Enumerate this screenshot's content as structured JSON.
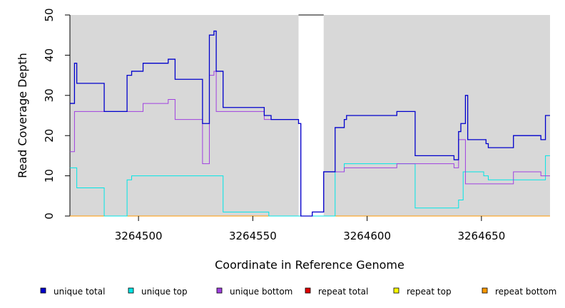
{
  "chart_data": {
    "type": "line",
    "step": true,
    "xlabel": "Coordinate in Reference Genome",
    "ylabel": "Read Coverage Depth",
    "xlim": [
      3264470,
      3264680
    ],
    "ylim": [
      0,
      50
    ],
    "x_ticks": [
      3264500,
      3264550,
      3264600,
      3264650
    ],
    "x_tick_labels": [
      "3264500",
      "3264550",
      "3264600",
      "3264650"
    ],
    "y_ticks": [
      0,
      10,
      20,
      30,
      40,
      50
    ],
    "y_tick_labels": [
      "0",
      "10",
      "20",
      "30",
      "40",
      "50"
    ],
    "background_color": "#d8d8d8",
    "background_gaps": [
      [
        3264570,
        3264581
      ]
    ],
    "series": [
      {
        "name": "unique total",
        "color": "#0000cc",
        "points": [
          [
            3264470,
            28
          ],
          [
            3264472,
            38
          ],
          [
            3264473,
            33
          ],
          [
            3264485,
            26
          ],
          [
            3264495,
            35
          ],
          [
            3264497,
            36
          ],
          [
            3264502,
            38
          ],
          [
            3264513,
            39
          ],
          [
            3264516,
            34
          ],
          [
            3264528,
            23
          ],
          [
            3264531,
            45
          ],
          [
            3264533,
            46
          ],
          [
            3264534,
            36
          ],
          [
            3264537,
            27
          ],
          [
            3264555,
            25
          ],
          [
            3264558,
            24
          ],
          [
            3264570,
            23
          ],
          [
            3264571,
            0
          ],
          [
            3264576,
            1
          ],
          [
            3264581,
            11
          ],
          [
            3264586,
            22
          ],
          [
            3264590,
            24
          ],
          [
            3264591,
            25
          ],
          [
            3264603,
            25
          ],
          [
            3264613,
            26
          ],
          [
            3264621,
            15
          ],
          [
            3264638,
            14
          ],
          [
            3264640,
            21
          ],
          [
            3264641,
            23
          ],
          [
            3264643,
            30
          ],
          [
            3264644,
            19
          ],
          [
            3264652,
            18
          ],
          [
            3264653,
            17
          ],
          [
            3264664,
            20
          ],
          [
            3264676,
            19
          ],
          [
            3264678,
            25
          ],
          [
            3264680,
            25
          ]
        ]
      },
      {
        "name": "unique top",
        "color": "#00e5e5",
        "points": [
          [
            3264470,
            12
          ],
          [
            3264473,
            7
          ],
          [
            3264485,
            0
          ],
          [
            3264495,
            9
          ],
          [
            3264497,
            10
          ],
          [
            3264537,
            1
          ],
          [
            3264557,
            0
          ],
          [
            3264586,
            11
          ],
          [
            3264590,
            13
          ],
          [
            3264621,
            2
          ],
          [
            3264640,
            4
          ],
          [
            3264642,
            11
          ],
          [
            3264651,
            10
          ],
          [
            3264653,
            9
          ],
          [
            3264664,
            9
          ],
          [
            3264678,
            15
          ],
          [
            3264680,
            15
          ]
        ]
      },
      {
        "name": "unique bottom",
        "color": "#a040e0",
        "points": [
          [
            3264470,
            16
          ],
          [
            3264472,
            26
          ],
          [
            3264502,
            28
          ],
          [
            3264513,
            29
          ],
          [
            3264516,
            24
          ],
          [
            3264528,
            13
          ],
          [
            3264531,
            35
          ],
          [
            3264533,
            36
          ],
          [
            3264534,
            26
          ],
          [
            3264555,
            24
          ],
          [
            3264558,
            24
          ],
          [
            3264570,
            23
          ],
          [
            3264571,
            0
          ],
          [
            3264576,
            1
          ],
          [
            3264581,
            11
          ],
          [
            3264590,
            12
          ],
          [
            3264613,
            13
          ],
          [
            3264638,
            12
          ],
          [
            3264640,
            19
          ],
          [
            3264643,
            8
          ],
          [
            3264664,
            11
          ],
          [
            3264676,
            10
          ],
          [
            3264680,
            10
          ]
        ]
      },
      {
        "name": "repeat total",
        "color": "#e00000",
        "points": [
          [
            3264470,
            0
          ],
          [
            3264680,
            0
          ]
        ]
      },
      {
        "name": "repeat top",
        "color": "#ffff00",
        "points": [
          [
            3264470,
            0
          ],
          [
            3264680,
            0
          ]
        ]
      },
      {
        "name": "repeat bottom",
        "color": "#ff9900",
        "points": [
          [
            3264470,
            0
          ],
          [
            3264680,
            0
          ]
        ]
      }
    ],
    "legend_position": "bottom"
  }
}
